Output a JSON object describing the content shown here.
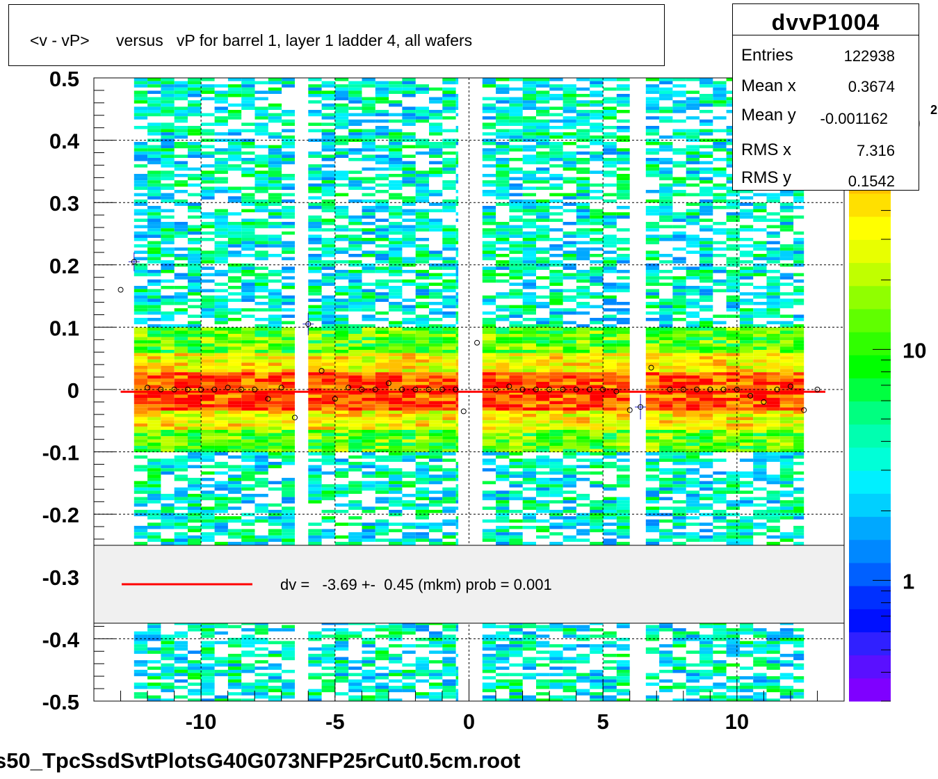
{
  "title": "<v - vP>      versus   vP for barrel 1, layer 1 ladder 4, all wafers",
  "stats": {
    "name": "dvvP1004",
    "rows": [
      {
        "label": "Entries",
        "value": "122938"
      },
      {
        "label": "Mean x",
        "value": "0.3674"
      },
      {
        "label": "Mean y",
        "value": "-0.001162"
      },
      {
        "label": "RMS x",
        "value": "7.316"
      },
      {
        "label": "RMS y",
        "value": "0.1542"
      }
    ]
  },
  "legend": {
    "fit_text": "dv =   -3.69 +-  0.45 (mkm) prob = 0.001",
    "line_color": "#ff0000",
    "background": "#f0f0f0"
  },
  "footer": "s50_TpcSsdSvtPlotsG40G073NFP25rCut0.5cm.root",
  "colorbar": {
    "labels": [
      "1",
      "10"
    ],
    "label_values": [
      1,
      10
    ],
    "scale": "log",
    "range": [
      0.3,
      150
    ],
    "colors": [
      "#7f00ff",
      "#5a10ff",
      "#3020ff",
      "#0010ff",
      "#0030ff",
      "#0060ff",
      "#0088ff",
      "#00a8ff",
      "#00d0ff",
      "#00f0ff",
      "#00ffd8",
      "#00ffb0",
      "#00ff80",
      "#00ff40",
      "#00ff00",
      "#30ff00",
      "#60ff00",
      "#90ff00",
      "#c0ff00",
      "#e8ff00",
      "#ffff00",
      "#ffe000",
      "#ffc000",
      "#ff9000",
      "#ff6000",
      "#ff3000",
      "#ff0000"
    ]
  },
  "chart_data": {
    "type": "heatmap",
    "title": "<v - vP>      versus   vP for barrel 1, layer 1 ladder 4, all wafers",
    "xlim": [
      -14,
      14
    ],
    "ylim": [
      -0.5,
      0.5
    ],
    "xticks": [
      -10,
      -5,
      0,
      5,
      10
    ],
    "yticks": [
      -0.5,
      -0.4,
      -0.3,
      -0.2,
      -0.1,
      0,
      0.1,
      0.2,
      0.3,
      0.4,
      0.5
    ],
    "xtick_labels": [
      "-10",
      "-5",
      "0",
      "5",
      "10"
    ],
    "ytick_labels": [
      "-0.5",
      "-0.4",
      "-0.3",
      "-0.2",
      "-0.1",
      "0",
      "0.1",
      "0.2",
      "0.3",
      "0.4",
      "0.5"
    ],
    "grid": true,
    "filled_x_ranges": [
      [
        -12.5,
        -6.5
      ],
      [
        -6.0,
        -0.4
      ],
      [
        0.5,
        6.0
      ],
      [
        6.6,
        12.5
      ]
    ],
    "core_band_y": [
      -0.03,
      0.03
    ],
    "fit_line": {
      "x": [
        -13.0,
        13.3
      ],
      "y": -0.00369
    },
    "profile_points": [
      {
        "x": -13.0,
        "y": 0.16
      },
      {
        "x": -12.5,
        "y": 0.205,
        "err": 0.015
      },
      {
        "x": -12.0,
        "y": 0.003
      },
      {
        "x": -11.5,
        "y": 0.0
      },
      {
        "x": -11.0,
        "y": 0.0
      },
      {
        "x": -10.5,
        "y": 0.0
      },
      {
        "x": -10.0,
        "y": 0.0
      },
      {
        "x": -9.5,
        "y": 0.0
      },
      {
        "x": -9.0,
        "y": 0.003
      },
      {
        "x": -8.5,
        "y": 0.0
      },
      {
        "x": -8.0,
        "y": 0.0
      },
      {
        "x": -7.5,
        "y": -0.015
      },
      {
        "x": -7.0,
        "y": 0.003
      },
      {
        "x": -6.5,
        "y": -0.045
      },
      {
        "x": -6.0,
        "y": 0.105,
        "err": 0.018
      },
      {
        "x": -5.5,
        "y": 0.03
      },
      {
        "x": -5.0,
        "y": -0.015
      },
      {
        "x": -4.5,
        "y": 0.003
      },
      {
        "x": -4.0,
        "y": 0.0
      },
      {
        "x": -3.5,
        "y": 0.0
      },
      {
        "x": -3.0,
        "y": 0.01
      },
      {
        "x": -2.5,
        "y": 0.0
      },
      {
        "x": -2.0,
        "y": 0.0
      },
      {
        "x": -1.5,
        "y": 0.0
      },
      {
        "x": -1.0,
        "y": 0.0
      },
      {
        "x": -0.5,
        "y": 0.0
      },
      {
        "x": -0.2,
        "y": -0.035
      },
      {
        "x": 0.3,
        "y": 0.075
      },
      {
        "x": 1.0,
        "y": 0.0
      },
      {
        "x": 1.5,
        "y": 0.005
      },
      {
        "x": 2.0,
        "y": 0.0
      },
      {
        "x": 2.5,
        "y": 0.0
      },
      {
        "x": 3.0,
        "y": 0.0
      },
      {
        "x": 3.5,
        "y": 0.0
      },
      {
        "x": 4.0,
        "y": 0.0
      },
      {
        "x": 4.5,
        "y": 0.0
      },
      {
        "x": 5.0,
        "y": 0.0
      },
      {
        "x": 5.5,
        "y": -0.003
      },
      {
        "x": 6.0,
        "y": -0.033
      },
      {
        "x": 6.4,
        "y": -0.028,
        "err": 0.02
      },
      {
        "x": 6.8,
        "y": 0.035
      },
      {
        "x": 7.5,
        "y": 0.0
      },
      {
        "x": 8.0,
        "y": 0.0
      },
      {
        "x": 8.5,
        "y": 0.0
      },
      {
        "x": 9.0,
        "y": 0.0
      },
      {
        "x": 9.5,
        "y": 0.0
      },
      {
        "x": 10.0,
        "y": 0.0
      },
      {
        "x": 10.5,
        "y": -0.01
      },
      {
        "x": 11.0,
        "y": -0.02
      },
      {
        "x": 11.5,
        "y": 0.0
      },
      {
        "x": 12.0,
        "y": 0.005
      },
      {
        "x": 12.5,
        "y": -0.033
      },
      {
        "x": 13.0,
        "y": 0.0
      }
    ]
  }
}
